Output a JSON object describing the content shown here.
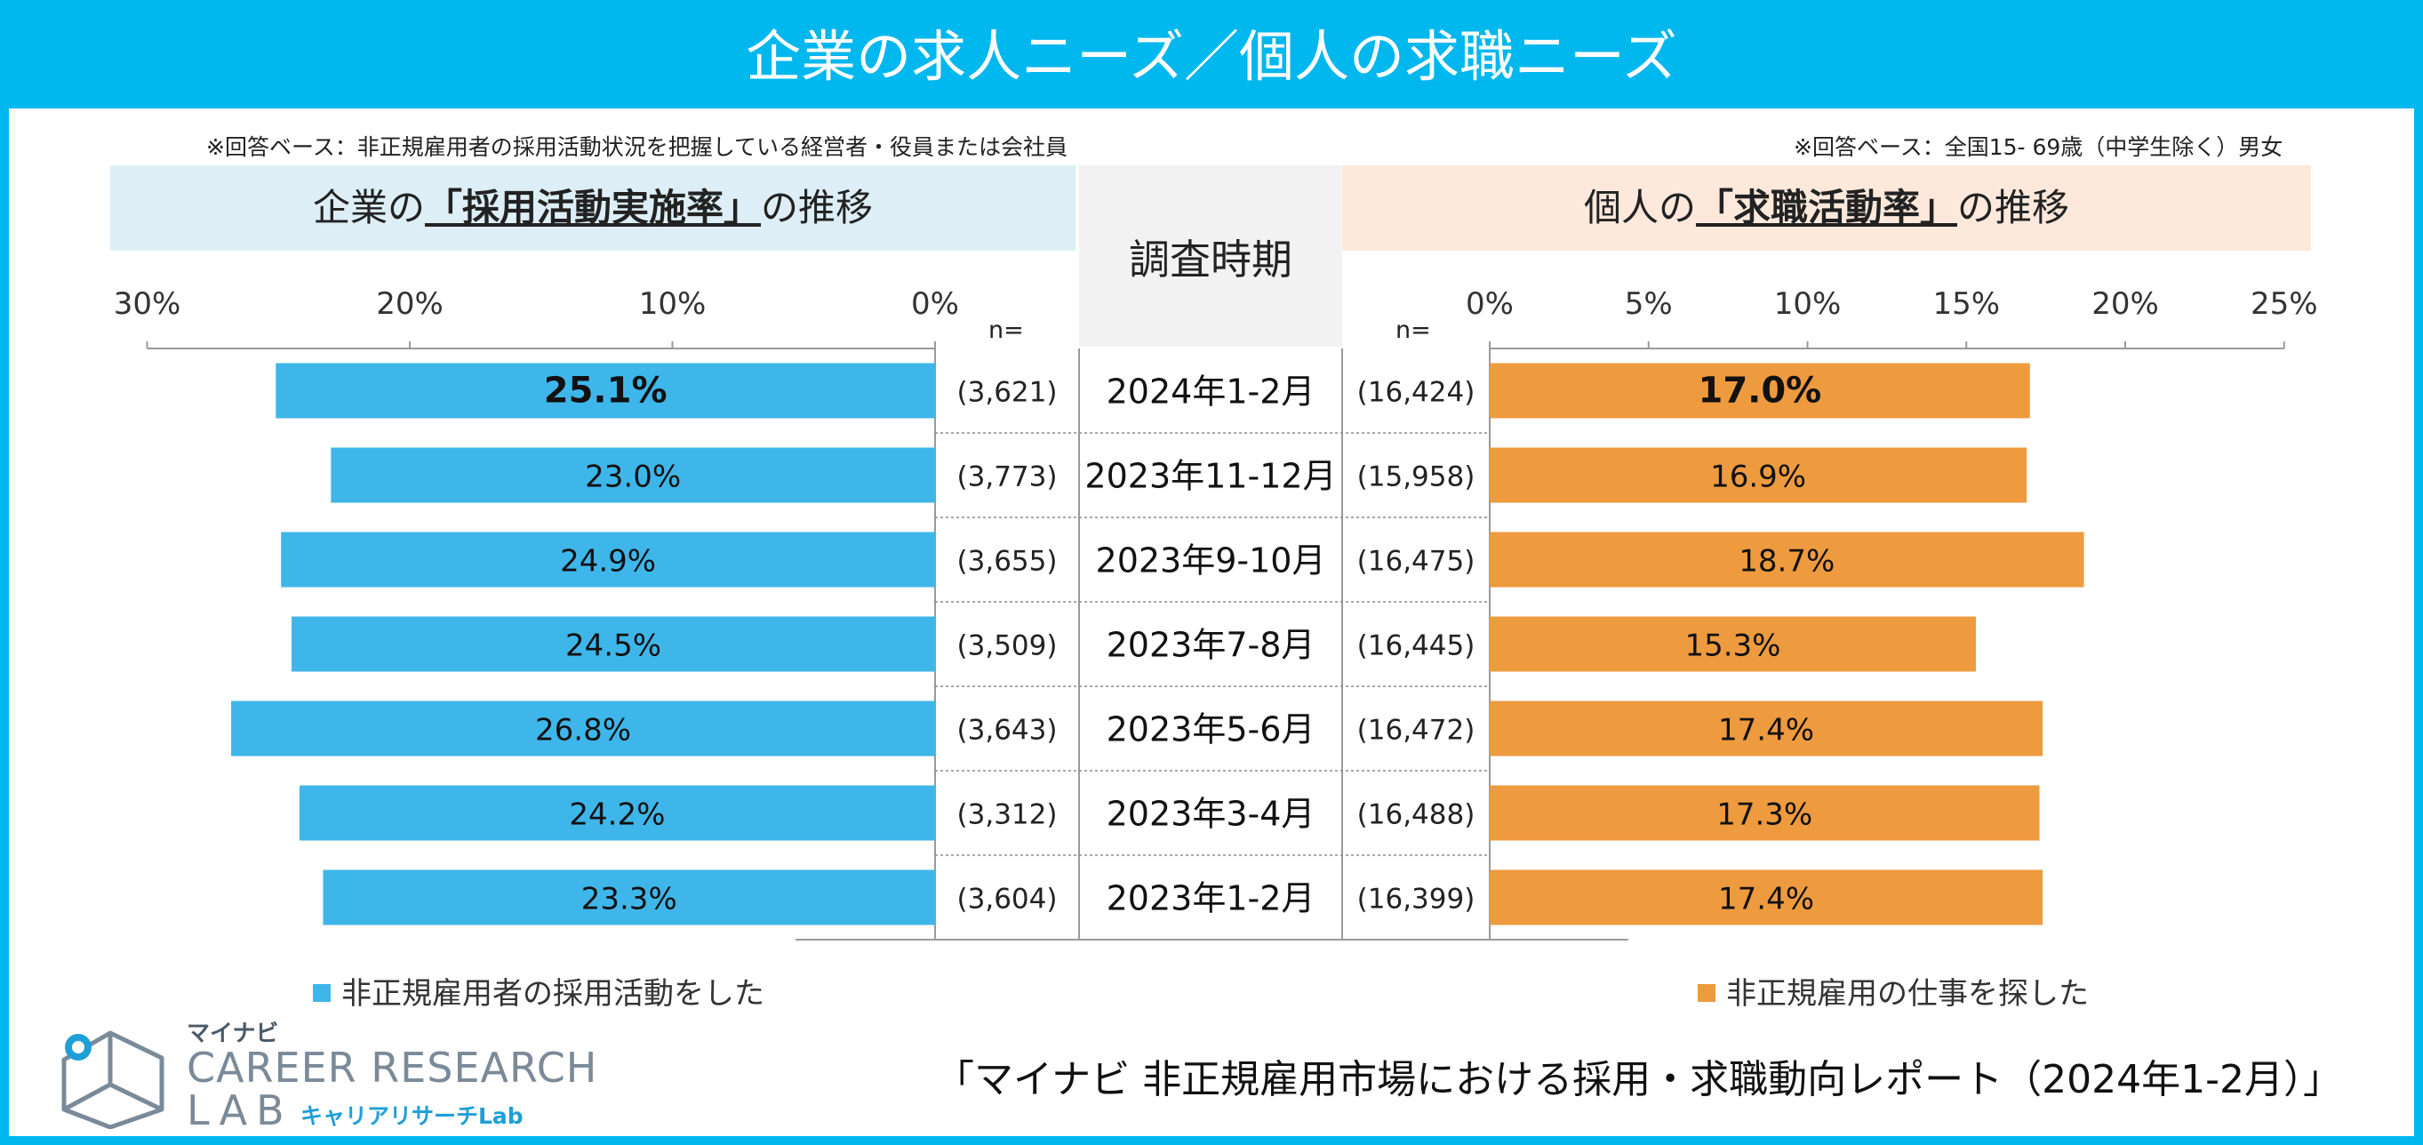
{
  "title": "企業の求人ニーズ／個人の求職ニーズ",
  "notes": {
    "left": "※回答ベース：非正規雇用者の採用活動状況を把握している経営者・役員または会社員",
    "right": "※回答ベース：全国15- 69歳（中学生除く）男女"
  },
  "headers": {
    "left_pre": "企業の",
    "left_em": "「採用活動実施率」",
    "left_post": "の推移",
    "middle": "調査時期",
    "right_pre": "個人の",
    "right_em": "「求職活動率」",
    "right_post": "の推移"
  },
  "n_label": "n=",
  "legend": {
    "left": "非正規雇用者の採用活動をした",
    "right": "非正規雇用の仕事を探した"
  },
  "source": "「マイナビ 非正規雇用市場における採用・求職動向レポート（2024年1-2月）」",
  "logo": {
    "kana": "マイナビ",
    "line1": "CAREER RESEARCH",
    "line2": "LAB",
    "sub": "キャリアリサーチLab"
  },
  "colors": {
    "title_bg": "#00b7ee",
    "left_bar": "#3fb6ea",
    "right_bar": "#ee9a3f"
  },
  "chart_data": [
    {
      "type": "bar",
      "orientation": "horizontal",
      "direction": "right-to-left",
      "title": "企業の「採用活動実施率」の推移",
      "categories": [
        "2024年1-2月",
        "2023年11-12月",
        "2023年9-10月",
        "2023年7-8月",
        "2023年5-6月",
        "2023年3-4月",
        "2023年1-2月"
      ],
      "n": [
        "(3,621)",
        "(3,773)",
        "(3,655)",
        "(3,509)",
        "(3,643)",
        "(3,312)",
        "(3,604)"
      ],
      "series": [
        {
          "name": "非正規雇用者の採用活動をした",
          "values": [
            25.1,
            23.0,
            24.9,
            24.5,
            26.8,
            24.2,
            23.3
          ]
        }
      ],
      "labels": [
        "25.1%",
        "23.0%",
        "24.9%",
        "24.5%",
        "26.8%",
        "24.2%",
        "23.3%"
      ],
      "xlim": [
        0,
        30
      ],
      "ticks": [
        "30%",
        "20%",
        "10%",
        "0%"
      ],
      "highlight_index": 0
    },
    {
      "type": "bar",
      "orientation": "horizontal",
      "title": "個人の「求職活動率」の推移",
      "categories": [
        "2024年1-2月",
        "2023年11-12月",
        "2023年9-10月",
        "2023年7-8月",
        "2023年5-6月",
        "2023年3-4月",
        "2023年1-2月"
      ],
      "n": [
        "(16,424)",
        "(15,958)",
        "(16,475)",
        "(16,445)",
        "(16,472)",
        "(16,488)",
        "(16,399)"
      ],
      "series": [
        {
          "name": "非正規雇用の仕事を探した",
          "values": [
            17.0,
            16.9,
            18.7,
            15.3,
            17.4,
            17.3,
            17.4
          ]
        }
      ],
      "labels": [
        "17.0%",
        "16.9%",
        "18.7%",
        "15.3%",
        "17.4%",
        "17.3%",
        "17.4%"
      ],
      "xlim": [
        0,
        25
      ],
      "ticks": [
        "0%",
        "5%",
        "10%",
        "15%",
        "20%",
        "25%"
      ],
      "highlight_index": 0
    }
  ]
}
